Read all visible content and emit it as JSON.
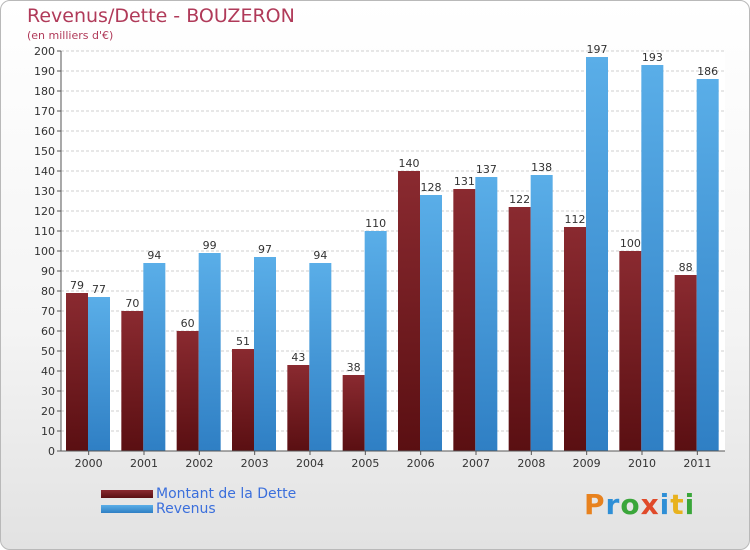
{
  "title": "Revenus/Dette - BOUZERON",
  "subtitle": "(en milliers d'€)",
  "colors": {
    "dette": "#7a1f24",
    "revenus": "#4fa3e0",
    "title": "#b03a59",
    "legend_text": "#3b6fdc"
  },
  "legend": {
    "dette_label": "Montant de la Dette",
    "revenus_label": "Revenus"
  },
  "logo": {
    "letters": [
      "P",
      "r",
      "o",
      "x",
      "i",
      "t",
      "i"
    ],
    "colors": [
      "#e8821e",
      "#2f8fd6",
      "#3aa63a",
      "#e04a2a",
      "#2f8fd6",
      "#e8b21e",
      "#3aa63a"
    ]
  },
  "chart_data": {
    "type": "bar",
    "categories": [
      "2000",
      "2001",
      "2002",
      "2003",
      "2004",
      "2005",
      "2006",
      "2007",
      "2008",
      "2009",
      "2010",
      "2011"
    ],
    "series": [
      {
        "name": "Montant de la Dette",
        "values": [
          79,
          70,
          60,
          51,
          43,
          38,
          140,
          131,
          122,
          112,
          100,
          88
        ]
      },
      {
        "name": "Revenus",
        "values": [
          77,
          94,
          99,
          97,
          94,
          110,
          128,
          137,
          138,
          197,
          193,
          186
        ]
      }
    ],
    "ylim": [
      0,
      200
    ],
    "ytick_step": 10,
    "grid": true,
    "legend_position": "bottom-left"
  }
}
